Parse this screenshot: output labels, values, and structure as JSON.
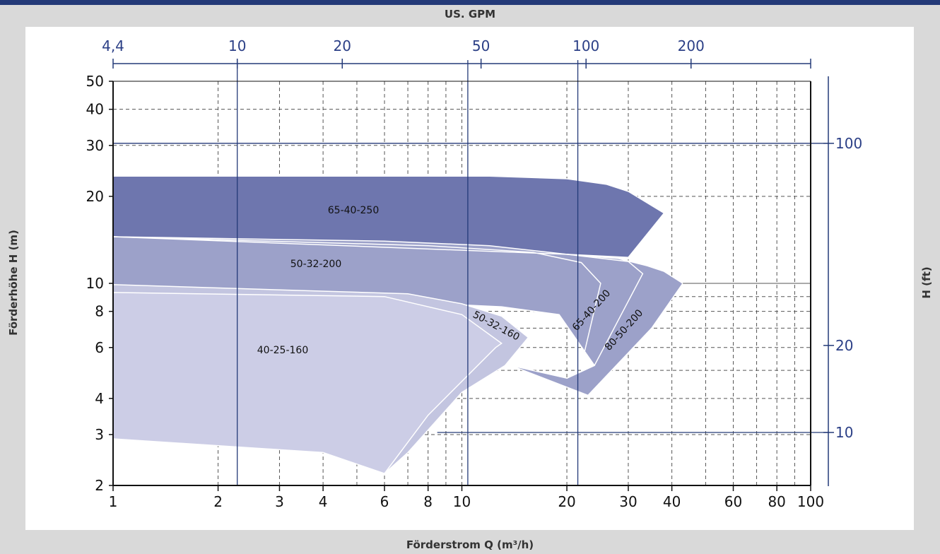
{
  "chart_data": {
    "type": "area",
    "top_axis": {
      "label": "US. GPM",
      "ticks": [
        "4,4",
        "10",
        "20",
        "50",
        "100",
        "200"
      ]
    },
    "xlabel": "Förderstrom Q (m³/h)",
    "ylabel_left": "Förderhöhe H (m)",
    "ylabel_right": "H (ft)",
    "x_scale": "log",
    "y_scale": "log",
    "xlim": [
      1,
      100
    ],
    "ylim": [
      2,
      50
    ],
    "x_ticks": [
      "1",
      "2",
      "3",
      "4",
      "6",
      "8",
      "10",
      "20",
      "30",
      "40",
      "60",
      "80",
      "100"
    ],
    "y_ticks": [
      "2",
      "3",
      "4",
      "6",
      "8",
      "10",
      "20",
      "30",
      "40",
      "50"
    ],
    "right_ticks": [
      "10",
      "20",
      "100"
    ],
    "grid": "dashed",
    "series": [
      {
        "name": "65-40-250",
        "color": "#6e76ae",
        "outline": [
          [
            1,
            23.5
          ],
          [
            12,
            23.5
          ],
          [
            20,
            23
          ],
          [
            26,
            22
          ],
          [
            30,
            20.8
          ],
          [
            38,
            17.5
          ],
          [
            30,
            12.3
          ],
          [
            20,
            12.6
          ],
          [
            8,
            13.5
          ],
          [
            1,
            14.5
          ]
        ]
      },
      {
        "name": "50-32-200",
        "color": "#9ca1c9",
        "outline": [
          [
            1,
            14.5
          ],
          [
            6,
            14.0
          ],
          [
            12,
            13.5
          ],
          [
            20,
            12.6
          ],
          [
            28,
            12.2
          ],
          [
            34,
            11.5
          ],
          [
            38,
            11.0
          ],
          [
            43,
            10.0
          ],
          [
            35,
            7.0
          ],
          [
            23,
            4.1
          ],
          [
            13.8,
            5.2
          ],
          [
            20,
            4.7
          ],
          [
            24,
            5.2
          ],
          [
            19,
            7.8
          ],
          [
            13,
            8.3
          ],
          [
            1,
            9.6
          ]
        ]
      },
      {
        "name": "65-40-200",
        "outline": [
          [
            1,
            14.5
          ],
          [
            8,
            13.5
          ],
          [
            16,
            12.8
          ],
          [
            22,
            11.8
          ],
          [
            25,
            10.0
          ],
          [
            22,
            5.2
          ]
        ]
      },
      {
        "name": "80-50-200",
        "outline": [
          [
            1,
            14.5
          ],
          [
            20,
            12.6
          ],
          [
            30,
            11.9
          ],
          [
            33,
            10.8
          ],
          [
            24,
            5.2
          ],
          [
            20,
            4.7
          ]
        ]
      },
      {
        "name": "50-32-160",
        "color": "#c3c5e0",
        "outline": [
          [
            1,
            9.9
          ],
          [
            7,
            9.2
          ],
          [
            10,
            8.5
          ],
          [
            13,
            7.7
          ],
          [
            15.5,
            6.5
          ],
          [
            13.3,
            5.2
          ],
          [
            10,
            4.2
          ],
          [
            7,
            2.6
          ],
          [
            6,
            2.2
          ],
          [
            4,
            2.6
          ],
          [
            1,
            2.9
          ]
        ]
      },
      {
        "name": "40-25-160",
        "color": "#cccde6",
        "outline": [
          [
            1,
            9.3
          ],
          [
            6,
            9.0
          ],
          [
            10,
            7.8
          ],
          [
            13,
            6.2
          ],
          [
            12.5,
            6.0
          ],
          [
            8,
            3.5
          ],
          [
            6,
            2.2
          ],
          [
            4,
            2.6
          ],
          [
            1,
            2.9
          ]
        ]
      }
    ],
    "colors": {
      "frame_bg": "#d9d9d9",
      "plot_bg": "#ffffff",
      "accent_blue": "#243a78",
      "grid": "#555555"
    }
  }
}
